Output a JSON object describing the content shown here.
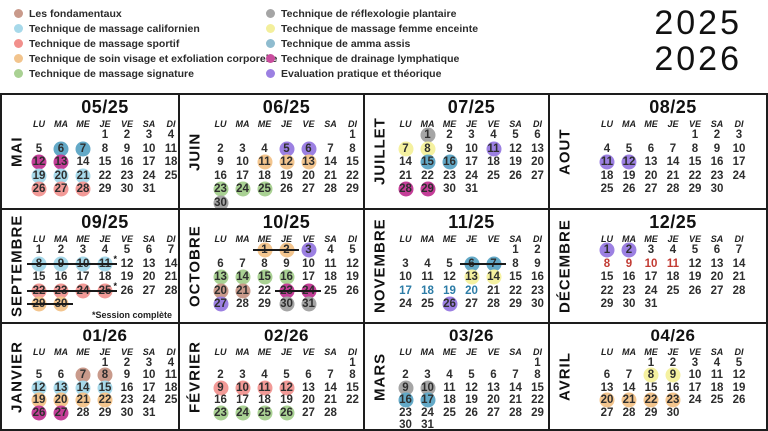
{
  "years": [
    "2025",
    "2026"
  ],
  "weekday_header": [
    "LU",
    "MA",
    "ME",
    "JE",
    "VE",
    "SA",
    "DI"
  ],
  "colors": {
    "fond": "#c99a8b",
    "cali": "#a7d9ea",
    "sport": "#f29a97",
    "soin": "#f3c58e",
    "sign": "#a9d193",
    "reflex": "#a5a5a5",
    "femme": "#f5f1a0",
    "amma": "#63a9c7",
    "drain": "#c43e98",
    "eval": "#9c80e2"
  },
  "legend": {
    "left": [
      {
        "label": "Les fondamentaux",
        "color": "#c99a8b"
      },
      {
        "label": "Technique de massage californien",
        "color": "#a7d9ea"
      },
      {
        "label": "Technique de massage sportif",
        "color": "#f2908c"
      },
      {
        "label": "Technique de soin visage et exfoliation corporelle",
        "color": "#f2c48d"
      },
      {
        "label": "Technique de massage signature",
        "color": "#a9d193"
      }
    ],
    "right": [
      {
        "label": "Technique de réflexologie plantaire",
        "color": "#a5a5a5"
      },
      {
        "label": "Technique de massage femme enceinte",
        "color": "#f3ef9c"
      },
      {
        "label": "Technique de amma assis",
        "color": "#8fbccf"
      },
      {
        "label": "Technique de drainage lymphatique",
        "color": "#c94d9e"
      },
      {
        "label": "Evaluation pratique et théorique",
        "color": "#9c80e2"
      }
    ]
  },
  "months": [
    {
      "name": "MAI",
      "title": "05/25",
      "weeks": [
        [
          null,
          null,
          null,
          1,
          2,
          3,
          4
        ],
        [
          5,
          {
            "n": 6,
            "c": "amma"
          },
          {
            "n": 7,
            "c": "amma"
          },
          8,
          9,
          10,
          11
        ],
        [
          {
            "n": 12,
            "c": "drain"
          },
          {
            "n": 13,
            "c": "drain"
          },
          14,
          15,
          16,
          17,
          18
        ],
        [
          {
            "n": 19,
            "c": "cali"
          },
          {
            "n": 20,
            "c": "cali"
          },
          {
            "n": 21,
            "c": "cali"
          },
          22,
          23,
          24,
          25
        ],
        [
          {
            "n": 26,
            "c": "sport"
          },
          {
            "n": 27,
            "c": "sport"
          },
          {
            "n": 28,
            "c": "sport"
          },
          29,
          30,
          31,
          null
        ]
      ]
    },
    {
      "name": "JUIN",
      "title": "06/25",
      "weeks": [
        [
          null,
          null,
          null,
          null,
          null,
          null,
          1
        ],
        [
          2,
          3,
          4,
          {
            "n": 5,
            "c": "eval"
          },
          {
            "n": 6,
            "c": "eval"
          },
          7,
          8
        ],
        [
          9,
          10,
          {
            "n": 11,
            "c": "soin"
          },
          {
            "n": 12,
            "c": "soin"
          },
          {
            "n": 13,
            "c": "soin"
          },
          14,
          15
        ],
        [
          16,
          17,
          18,
          19,
          20,
          21,
          22
        ],
        [
          {
            "n": 23,
            "c": "sign"
          },
          {
            "n": 24,
            "c": "sign"
          },
          {
            "n": 25,
            "c": "sign"
          },
          26,
          27,
          28,
          29
        ],
        [
          {
            "n": 30,
            "c": "reflex"
          },
          null,
          null,
          null,
          null,
          null,
          null
        ]
      ]
    },
    {
      "name": "JUILLET",
      "title": "07/25",
      "weeks": [
        [
          null,
          {
            "n": 1,
            "c": "reflex"
          },
          2,
          3,
          4,
          5,
          6
        ],
        [
          {
            "n": 7,
            "c": "femme"
          },
          {
            "n": 8,
            "c": "femme"
          },
          9,
          10,
          {
            "n": 11,
            "c": "eval"
          },
          12,
          13
        ],
        [
          14,
          {
            "n": 15,
            "c": "amma"
          },
          {
            "n": 16,
            "c": "amma"
          },
          17,
          18,
          19,
          20
        ],
        [
          21,
          22,
          23,
          24,
          25,
          26,
          27
        ],
        [
          {
            "n": 28,
            "c": "drain"
          },
          {
            "n": 29,
            "c": "drain"
          },
          30,
          31,
          null,
          null,
          null
        ]
      ]
    },
    {
      "name": "AOUT",
      "title": "08/25",
      "weeks": [
        [
          null,
          null,
          null,
          null,
          1,
          2,
          3
        ],
        [
          4,
          5,
          6,
          7,
          8,
          9,
          10
        ],
        [
          {
            "n": 11,
            "c": "eval"
          },
          {
            "n": 12,
            "c": "eval"
          },
          13,
          14,
          15,
          16,
          17
        ],
        [
          18,
          19,
          20,
          21,
          22,
          23,
          24
        ],
        [
          25,
          26,
          27,
          28,
          29,
          30,
          null
        ]
      ]
    },
    {
      "name": "SEPTEMBRE",
      "title": "09/25",
      "note": "*Session complète",
      "weeks": [
        [
          1,
          2,
          3,
          4,
          5,
          6,
          7
        ],
        [
          {
            "n": 8,
            "c": "cali",
            "s": 1
          },
          {
            "n": 9,
            "c": "cali",
            "s": 1
          },
          {
            "n": 10,
            "c": "cali",
            "s": 1
          },
          {
            "n": 11,
            "c": "cali",
            "s": 1,
            "a": 1
          },
          12,
          13,
          14
        ],
        [
          15,
          16,
          17,
          18,
          19,
          20,
          21
        ],
        [
          {
            "n": 22,
            "c": "sport",
            "s": 1
          },
          {
            "n": 23,
            "c": "sport",
            "s": 1
          },
          {
            "n": 24,
            "c": "sport",
            "s": 1
          },
          {
            "n": 25,
            "c": "sport",
            "s": 1,
            "a": 1
          },
          26,
          27,
          28
        ],
        [
          {
            "n": 29,
            "c": "soin",
            "s": 1
          },
          {
            "n": 30,
            "c": "soin",
            "s": 1
          },
          null,
          null,
          null,
          null,
          null
        ]
      ]
    },
    {
      "name": "OCTOBRE",
      "title": "10/25",
      "weeks": [
        [
          null,
          null,
          {
            "n": 1,
            "c": "soin",
            "s": 1
          },
          {
            "n": 2,
            "c": "soin",
            "s": 1
          },
          {
            "n": 3,
            "c": "eval"
          },
          4,
          5
        ],
        [
          6,
          7,
          8,
          9,
          10,
          11,
          12
        ],
        [
          {
            "n": 13,
            "c": "sign"
          },
          {
            "n": 14,
            "c": "sign"
          },
          {
            "n": 15,
            "c": "sign"
          },
          {
            "n": 16,
            "c": "sign"
          },
          17,
          18,
          19
        ],
        [
          {
            "n": 20,
            "c": "fond"
          },
          {
            "n": 21,
            "c": "fond"
          },
          22,
          {
            "n": 23,
            "c": "drain",
            "s": 1
          },
          {
            "n": 24,
            "c": "drain",
            "s": 1
          },
          25,
          26
        ],
        [
          {
            "n": 27,
            "c": "eval"
          },
          28,
          29,
          {
            "n": 30,
            "c": "reflex"
          },
          {
            "n": 31,
            "c": "reflex"
          },
          null,
          null
        ]
      ]
    },
    {
      "name": "NOVEMBRE",
      "title": "11/25",
      "weeks": [
        [
          null,
          null,
          null,
          null,
          null,
          1,
          2
        ],
        [
          3,
          4,
          5,
          {
            "n": 6,
            "c": "amma",
            "s": 1
          },
          {
            "n": 7,
            "c": "amma",
            "s": 1
          },
          8,
          9
        ],
        [
          10,
          11,
          12,
          {
            "n": 13,
            "c": "femme"
          },
          {
            "n": 14,
            "c": "femme"
          },
          15,
          16
        ],
        [
          {
            "n": 17,
            "tc": "#2c7ca6"
          },
          {
            "n": 18,
            "tc": "#2c7ca6"
          },
          {
            "n": 19,
            "tc": "#2c7ca6"
          },
          {
            "n": 20,
            "tc": "#2c7ca6"
          },
          21,
          22,
          23
        ],
        [
          24,
          25,
          {
            "n": 26,
            "c": "eval"
          },
          27,
          28,
          29,
          30
        ]
      ]
    },
    {
      "name": "DÉCEMBRE",
      "title": "12/25",
      "weeks": [
        [
          {
            "n": 1,
            "c": "eval"
          },
          {
            "n": 2,
            "c": "eval"
          },
          3,
          4,
          5,
          6,
          7
        ],
        [
          {
            "n": 8,
            "tc": "#c23b33"
          },
          {
            "n": 9,
            "tc": "#c23b33"
          },
          {
            "n": 10,
            "tc": "#c23b33"
          },
          {
            "n": 11,
            "tc": "#c23b33"
          },
          12,
          13,
          14
        ],
        [
          15,
          16,
          17,
          18,
          19,
          20,
          21
        ],
        [
          22,
          23,
          24,
          25,
          26,
          27,
          28
        ],
        [
          29,
          30,
          31,
          null,
          null,
          null,
          null
        ]
      ]
    },
    {
      "name": "JANVIER",
      "title": "01/26",
      "weeks": [
        [
          null,
          null,
          null,
          1,
          2,
          3,
          4
        ],
        [
          5,
          6,
          {
            "n": 7,
            "c": "fond"
          },
          {
            "n": 8,
            "c": "fond"
          },
          9,
          10,
          11
        ],
        [
          {
            "n": 12,
            "c": "cali"
          },
          {
            "n": 13,
            "c": "cali"
          },
          {
            "n": 14,
            "c": "cali"
          },
          {
            "n": 15,
            "c": "cali"
          },
          16,
          17,
          18
        ],
        [
          {
            "n": 19,
            "c": "soin"
          },
          {
            "n": 20,
            "c": "soin"
          },
          {
            "n": 21,
            "c": "soin"
          },
          {
            "n": 22,
            "c": "soin"
          },
          23,
          24,
          25
        ],
        [
          {
            "n": 26,
            "c": "drain"
          },
          {
            "n": 27,
            "c": "drain"
          },
          28,
          29,
          30,
          31,
          null
        ]
      ]
    },
    {
      "name": "FÉVRIER",
      "title": "02/26",
      "weeks": [
        [
          null,
          null,
          null,
          null,
          null,
          null,
          1
        ],
        [
          2,
          3,
          4,
          5,
          6,
          7,
          8
        ],
        [
          {
            "n": 9,
            "c": "sport"
          },
          {
            "n": 10,
            "c": "sport"
          },
          {
            "n": 11,
            "c": "sport"
          },
          {
            "n": 12,
            "c": "sport"
          },
          13,
          14,
          15
        ],
        [
          16,
          17,
          18,
          19,
          20,
          21,
          22
        ],
        [
          {
            "n": 23,
            "c": "sign"
          },
          {
            "n": 24,
            "c": "sign"
          },
          {
            "n": 25,
            "c": "sign"
          },
          {
            "n": 26,
            "c": "sign"
          },
          27,
          28,
          null
        ]
      ]
    },
    {
      "name": "MARS",
      "title": "03/26",
      "weeks": [
        [
          null,
          null,
          null,
          null,
          null,
          null,
          1
        ],
        [
          2,
          3,
          4,
          5,
          6,
          7,
          8
        ],
        [
          {
            "n": 9,
            "c": "reflex"
          },
          {
            "n": 10,
            "c": "reflex"
          },
          11,
          12,
          13,
          14,
          15
        ],
        [
          {
            "n": 16,
            "c": "amma"
          },
          {
            "n": 17,
            "c": "amma"
          },
          18,
          19,
          20,
          21,
          22
        ],
        [
          23,
          24,
          25,
          26,
          27,
          28,
          29
        ],
        [
          30,
          31,
          null,
          null,
          null,
          null,
          null
        ]
      ]
    },
    {
      "name": "AVRIL",
      "title": "04/26",
      "weeks": [
        [
          null,
          null,
          1,
          2,
          3,
          4,
          5
        ],
        [
          6,
          7,
          {
            "n": 8,
            "c": "femme"
          },
          {
            "n": 9,
            "c": "femme"
          },
          10,
          11,
          12
        ],
        [
          13,
          14,
          15,
          16,
          17,
          18,
          19
        ],
        [
          {
            "n": 20,
            "c": "soin"
          },
          {
            "n": 21,
            "c": "soin"
          },
          {
            "n": 22,
            "c": "soin"
          },
          {
            "n": 23,
            "c": "soin"
          },
          24,
          25,
          26
        ],
        [
          27,
          28,
          29,
          30,
          null,
          null,
          null
        ]
      ]
    }
  ]
}
